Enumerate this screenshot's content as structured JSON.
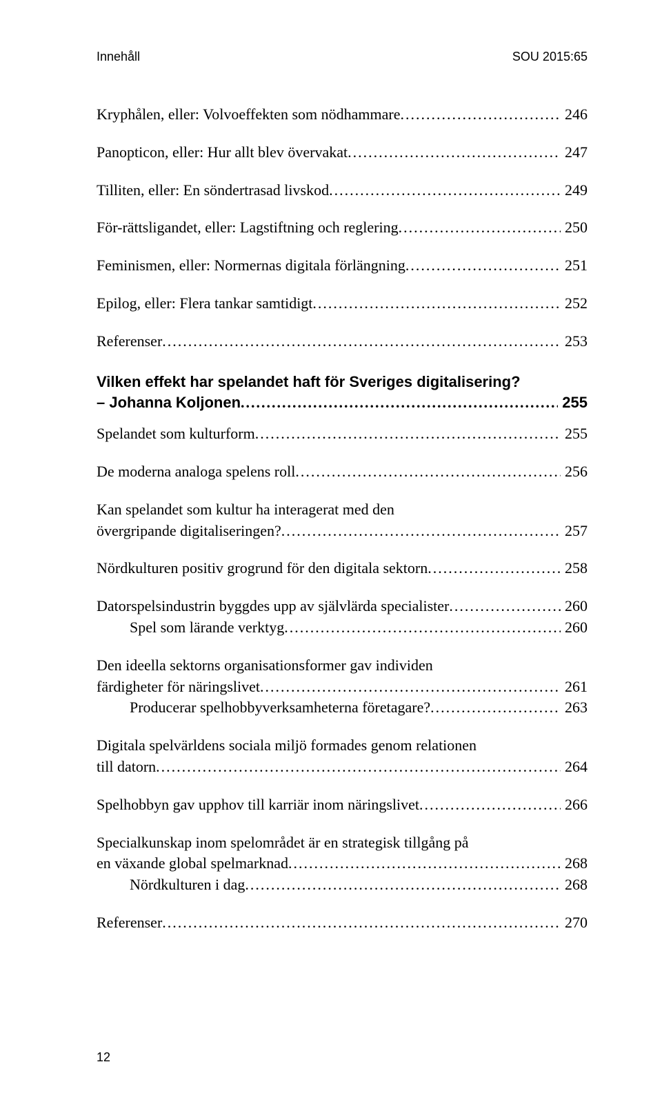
{
  "header": {
    "left": "Innehåll",
    "right": "SOU 2015:65"
  },
  "toc": {
    "g1": {
      "e1": {
        "label": "Kryphålen, eller: Volvoeffekten som nödhammare",
        "page": "246"
      },
      "e2": {
        "label": "Panopticon, eller: Hur allt blev övervakat",
        "page": "247"
      },
      "e3": {
        "label": "Tilliten, eller: En söndertrasad livskod",
        "page": "249"
      },
      "e4": {
        "label": "För-rättsligandet, eller: Lagstiftning och reglering",
        "page": "250"
      },
      "e5": {
        "label": "Feminismen, eller: Normernas digitala förlängning",
        "page": "251"
      },
      "e6": {
        "label": "Epilog, eller: Flera tankar samtidigt",
        "page": "252"
      },
      "e7": {
        "label": "Referenser",
        "page": "253"
      }
    },
    "heading": {
      "line1": "Vilken effekt har spelandet haft för Sveriges digitalisering?",
      "author": "– Johanna Koljonen",
      "page": "255"
    },
    "g2": {
      "e1": {
        "label": "Spelandet som kulturform",
        "page": "255"
      },
      "e2": {
        "label": "De moderna analoga spelens roll",
        "page": "256"
      },
      "e3a": {
        "label": "Kan spelandet som kultur ha interagerat med den"
      },
      "e3b": {
        "label": "övergripande digitaliseringen?",
        "page": "257"
      },
      "e4": {
        "label": "Nördkulturen positiv grogrund för den digitala sektorn",
        "page": "258"
      },
      "e5": {
        "label": "Datorspelsindustrin byggdes upp av självlärda specialister",
        "page": "260"
      },
      "e5s1": {
        "label": "Spel som lärande verktyg",
        "page": "260"
      },
      "e6a": {
        "label": "Den ideella sektorns organisationsformer gav individen"
      },
      "e6b": {
        "label": "färdigheter för näringslivet",
        "page": "261"
      },
      "e6s1": {
        "label": "Producerar spelhobbyverksamheterna företagare?",
        "page": "263"
      },
      "e7a": {
        "label": "Digitala spelvärldens sociala miljö formades genom relationen"
      },
      "e7b": {
        "label": "till datorn",
        "page": "264"
      },
      "e8": {
        "label": "Spelhobbyn gav upphov till karriär inom näringslivet",
        "page": "266"
      },
      "e9a": {
        "label": "Specialkunskap inom spelområdet är en strategisk tillgång på"
      },
      "e9b": {
        "label": "en växande global spelmarknad",
        "page": "268"
      },
      "e9s1": {
        "label": "Nördkulturen i dag",
        "page": "268"
      },
      "e10": {
        "label": "Referenser",
        "page": "270"
      }
    }
  },
  "footer": {
    "page_number": "12"
  }
}
